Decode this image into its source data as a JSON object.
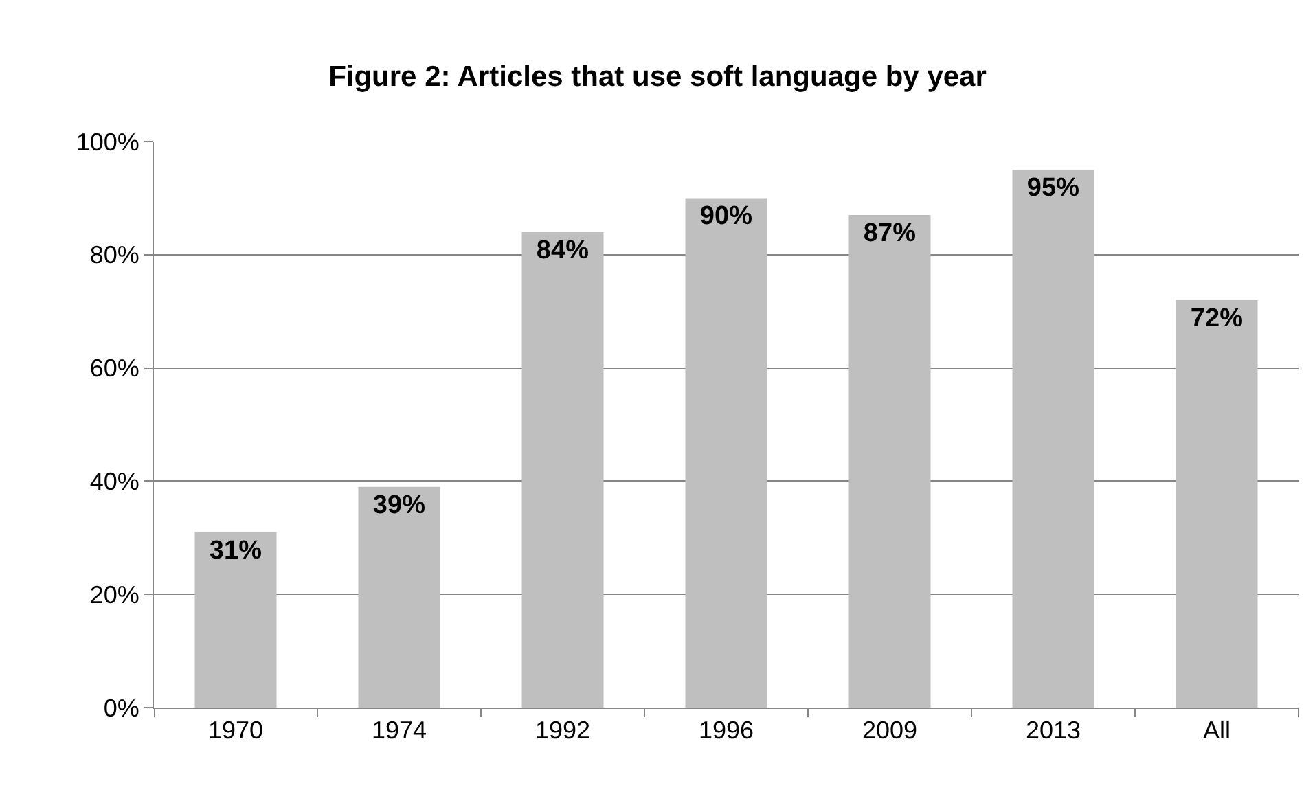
{
  "chart_data": {
    "type": "bar",
    "title": "Figure 2: Articles that use soft language by year",
    "categories": [
      "1970",
      "1974",
      "1992",
      "1996",
      "2009",
      "2013",
      "All"
    ],
    "values": [
      31,
      39,
      84,
      90,
      87,
      95,
      72
    ],
    "value_labels": [
      "31%",
      "39%",
      "84%",
      "90%",
      "87%",
      "95%",
      "72%"
    ],
    "color": "#bfbfbf",
    "ylim": [
      0,
      100
    ],
    "yticks": [
      {
        "value": 0,
        "label": "0%"
      },
      {
        "value": 20,
        "label": "20%"
      },
      {
        "value": 40,
        "label": "40%"
      },
      {
        "value": 60,
        "label": "60%"
      },
      {
        "value": 80,
        "label": "80%"
      },
      {
        "value": 100,
        "label": "100%"
      }
    ],
    "grid": "y"
  }
}
